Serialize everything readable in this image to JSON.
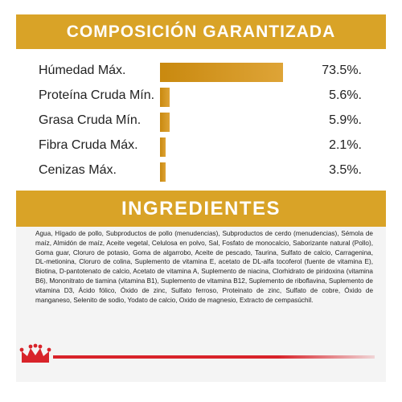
{
  "composition": {
    "title": "COMPOSICIÓN GARANTIZADA",
    "accent_color": "#d9a327",
    "items": [
      {
        "label": "Húmedad Máx.",
        "value": "73.5%.",
        "percent": 73.5
      },
      {
        "label": "Proteína Cruda Mín.",
        "value": "5.6%.",
        "percent": 5.6
      },
      {
        "label": "Grasa Cruda Mín.",
        "value": "5.9%.",
        "percent": 5.9
      },
      {
        "label": "Fibra Cruda Máx.",
        "value": "2.1%.",
        "percent": 2.1
      },
      {
        "label": "Cenizas Máx.",
        "value": "3.5%.",
        "percent": 3.5
      }
    ]
  },
  "ingredients": {
    "title": "INGREDIENTES",
    "text": "Agua, Hígado de pollo, Subproductos de pollo (menudencias), Subproductos de cerdo (menudencias), Sémola de maíz, Almidón de maíz, Aceite vegetal, Celulosa en polvo, Sal, Fosfato de monocalcio, Saborizante natural (Pollo), Goma guar, Cloruro de potasio, Goma de algarrobo, Aceite de pescado, Taurina, Sulfato de calcio, Carragenina, DL-metionina, Cloruro de colina, Suplemento de vitamina E, acetato de DL-alfa tocoferol (fuente de vitamina E), Biotina, D-pantotenato de calcio, Acetato de vitamina A, Suplemento de niacina, Clorhidrato de piridoxina (vitamina B6), Mononitrato de tiamina (vitamina B1), Suplemento de vitamina B12, Suplemento de riboflavina, Suplemento de vitamina D3, Ácido fólico, Óxido de zinc, Sulfato ferroso, Proteinato de zinc, Sulfato de cobre, Óxido de manganeso, Selenito de sodio, Yodato de calcio, Oxido de magnesio, Extracto de cempasúchil."
  },
  "footer": {
    "logo_icon": "crown-icon",
    "line_color": "#d8232a"
  }
}
